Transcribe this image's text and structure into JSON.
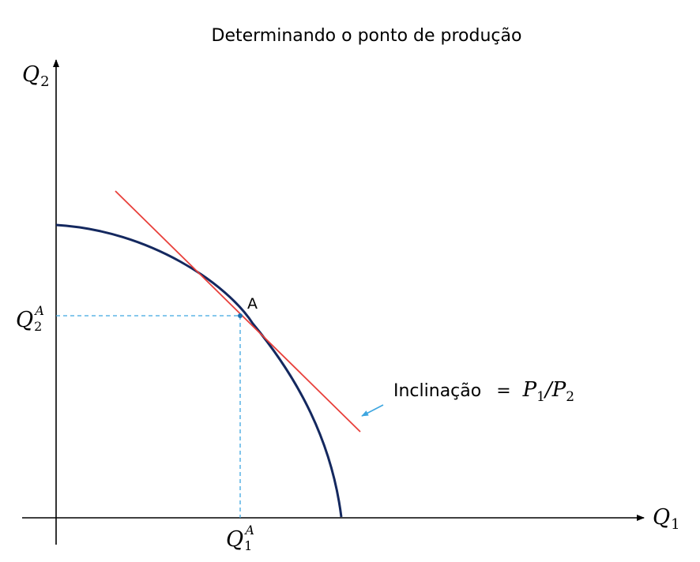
{
  "title": "Determinando o ponto de produção",
  "axes": {
    "x_label": {
      "base": "Q",
      "sub": "1"
    },
    "y_label": {
      "base": "Q",
      "sub": "2"
    }
  },
  "point": {
    "label": "A",
    "x_label": {
      "base": "Q",
      "sub": "1",
      "sup": "A"
    },
    "y_label": {
      "base": "Q",
      "sub": "2",
      "sup": "A"
    }
  },
  "annotation": {
    "text": "Inclinação",
    "equals": "=",
    "num": {
      "base": "P",
      "sub": "1"
    },
    "slash": "/",
    "den": {
      "base": "P",
      "sub": "2"
    }
  },
  "colors": {
    "curve": "#14285f",
    "tangent": "#e8403b",
    "guides": "#3ea6e0",
    "arrow": "#3ea6e0",
    "axes": "#000000"
  }
}
